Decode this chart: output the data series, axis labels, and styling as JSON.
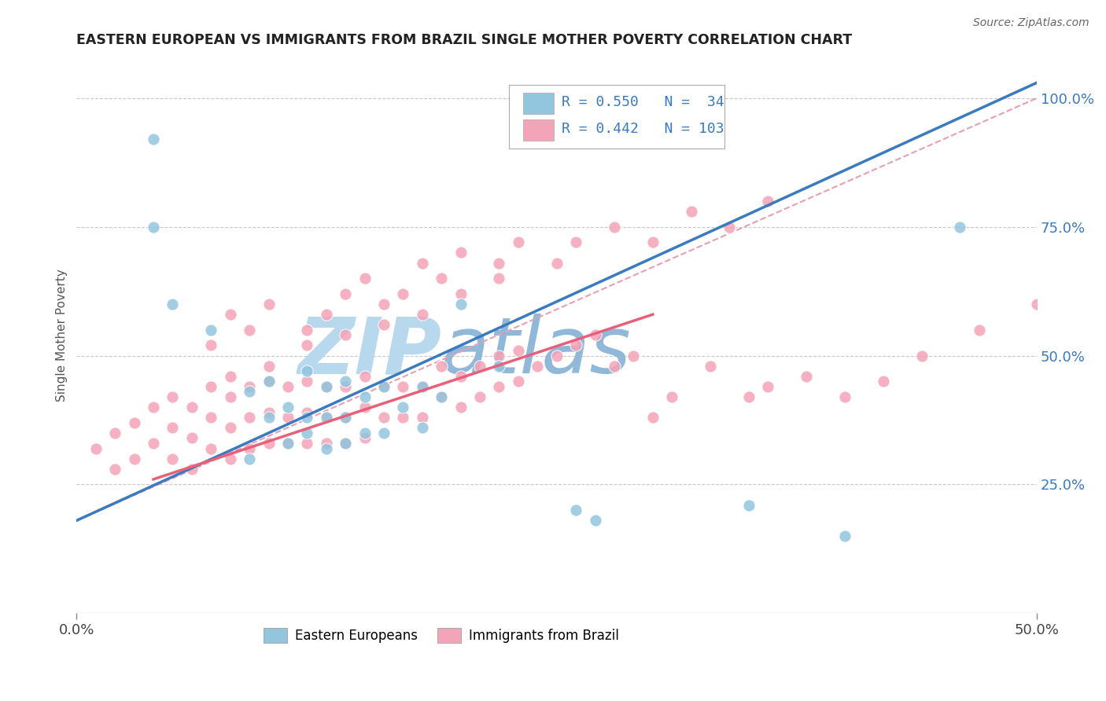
{
  "title": "EASTERN EUROPEAN VS IMMIGRANTS FROM BRAZIL SINGLE MOTHER POVERTY CORRELATION CHART",
  "source": "Source: ZipAtlas.com",
  "ylabel": "Single Mother Poverty",
  "xlim": [
    0,
    0.5
  ],
  "ylim": [
    0,
    1.08
  ],
  "xticks": [
    0.0,
    0.5
  ],
  "xticklabels": [
    "0.0%",
    "50.0%"
  ],
  "yticks_right": [
    0.25,
    0.5,
    0.75,
    1.0
  ],
  "ytickslabels_right": [
    "25.0%",
    "50.0%",
    "75.0%",
    "100.0%"
  ],
  "legend_R": [
    "0.550",
    "0.442"
  ],
  "legend_N": [
    "34",
    "103"
  ],
  "blue_color": "#92c5de",
  "pink_color": "#f4a4b8",
  "blue_line_color": "#3a7abf",
  "pink_line_color": "#e8607a",
  "dash_line_color": "#e8a0b0",
  "watermark_zip_color": "#b8d8ee",
  "watermark_atlas_color": "#90b8d8",
  "grid_color": "#c8c8c8",
  "bg_color": "#ffffff",
  "legend_text_color": "#3a7abf",
  "blue_scatter_x": [
    0.04,
    0.04,
    0.05,
    0.07,
    0.09,
    0.09,
    0.1,
    0.1,
    0.11,
    0.11,
    0.12,
    0.12,
    0.12,
    0.13,
    0.13,
    0.13,
    0.14,
    0.14,
    0.14,
    0.15,
    0.15,
    0.16,
    0.16,
    0.17,
    0.18,
    0.18,
    0.19,
    0.2,
    0.22,
    0.26,
    0.27,
    0.35,
    0.4,
    0.46
  ],
  "blue_scatter_y": [
    0.92,
    0.75,
    0.6,
    0.55,
    0.3,
    0.43,
    0.38,
    0.45,
    0.33,
    0.4,
    0.35,
    0.38,
    0.47,
    0.32,
    0.38,
    0.44,
    0.33,
    0.38,
    0.45,
    0.35,
    0.42,
    0.35,
    0.44,
    0.4,
    0.36,
    0.44,
    0.42,
    0.6,
    0.48,
    0.2,
    0.18,
    0.21,
    0.15,
    0.75
  ],
  "pink_scatter_x": [
    0.01,
    0.02,
    0.02,
    0.03,
    0.03,
    0.04,
    0.04,
    0.05,
    0.05,
    0.05,
    0.06,
    0.06,
    0.06,
    0.07,
    0.07,
    0.07,
    0.08,
    0.08,
    0.08,
    0.09,
    0.09,
    0.09,
    0.1,
    0.1,
    0.1,
    0.11,
    0.11,
    0.11,
    0.12,
    0.12,
    0.12,
    0.13,
    0.13,
    0.13,
    0.14,
    0.14,
    0.14,
    0.15,
    0.15,
    0.15,
    0.16,
    0.16,
    0.17,
    0.17,
    0.18,
    0.18,
    0.19,
    0.19,
    0.2,
    0.2,
    0.21,
    0.21,
    0.22,
    0.22,
    0.23,
    0.23,
    0.24,
    0.25,
    0.26,
    0.27,
    0.28,
    0.29,
    0.3,
    0.31,
    0.33,
    0.35,
    0.36,
    0.38,
    0.4,
    0.42,
    0.44,
    0.47,
    0.5,
    0.07,
    0.08,
    0.09,
    0.1,
    0.12,
    0.13,
    0.14,
    0.15,
    0.16,
    0.17,
    0.18,
    0.19,
    0.2,
    0.22,
    0.23,
    0.25,
    0.26,
    0.28,
    0.3,
    0.32,
    0.34,
    0.36,
    0.08,
    0.1,
    0.12,
    0.14,
    0.16,
    0.18,
    0.2,
    0.22
  ],
  "pink_scatter_y": [
    0.32,
    0.28,
    0.35,
    0.3,
    0.37,
    0.33,
    0.4,
    0.3,
    0.36,
    0.42,
    0.28,
    0.34,
    0.4,
    0.32,
    0.38,
    0.44,
    0.3,
    0.36,
    0.42,
    0.32,
    0.38,
    0.44,
    0.33,
    0.39,
    0.45,
    0.33,
    0.38,
    0.44,
    0.33,
    0.39,
    0.45,
    0.33,
    0.38,
    0.44,
    0.33,
    0.38,
    0.44,
    0.34,
    0.4,
    0.46,
    0.38,
    0.44,
    0.38,
    0.44,
    0.38,
    0.44,
    0.42,
    0.48,
    0.4,
    0.46,
    0.42,
    0.48,
    0.44,
    0.5,
    0.45,
    0.51,
    0.48,
    0.5,
    0.52,
    0.54,
    0.48,
    0.5,
    0.38,
    0.42,
    0.48,
    0.42,
    0.44,
    0.46,
    0.42,
    0.45,
    0.5,
    0.55,
    0.6,
    0.52,
    0.58,
    0.55,
    0.6,
    0.55,
    0.58,
    0.62,
    0.65,
    0.6,
    0.62,
    0.68,
    0.65,
    0.7,
    0.68,
    0.72,
    0.68,
    0.72,
    0.75,
    0.72,
    0.78,
    0.75,
    0.8,
    0.46,
    0.48,
    0.52,
    0.54,
    0.56,
    0.58,
    0.62,
    0.65
  ],
  "blue_line_x0": 0.0,
  "blue_line_y0": 0.18,
  "blue_line_x1": 0.5,
  "blue_line_y1": 1.03,
  "pink_line_x0": 0.04,
  "pink_line_y0": 0.26,
  "pink_line_x1": 0.3,
  "pink_line_y1": 0.58,
  "dash_line_x0": 0.0,
  "dash_line_y0": 0.18,
  "dash_line_x1": 0.5,
  "dash_line_y1": 1.0
}
